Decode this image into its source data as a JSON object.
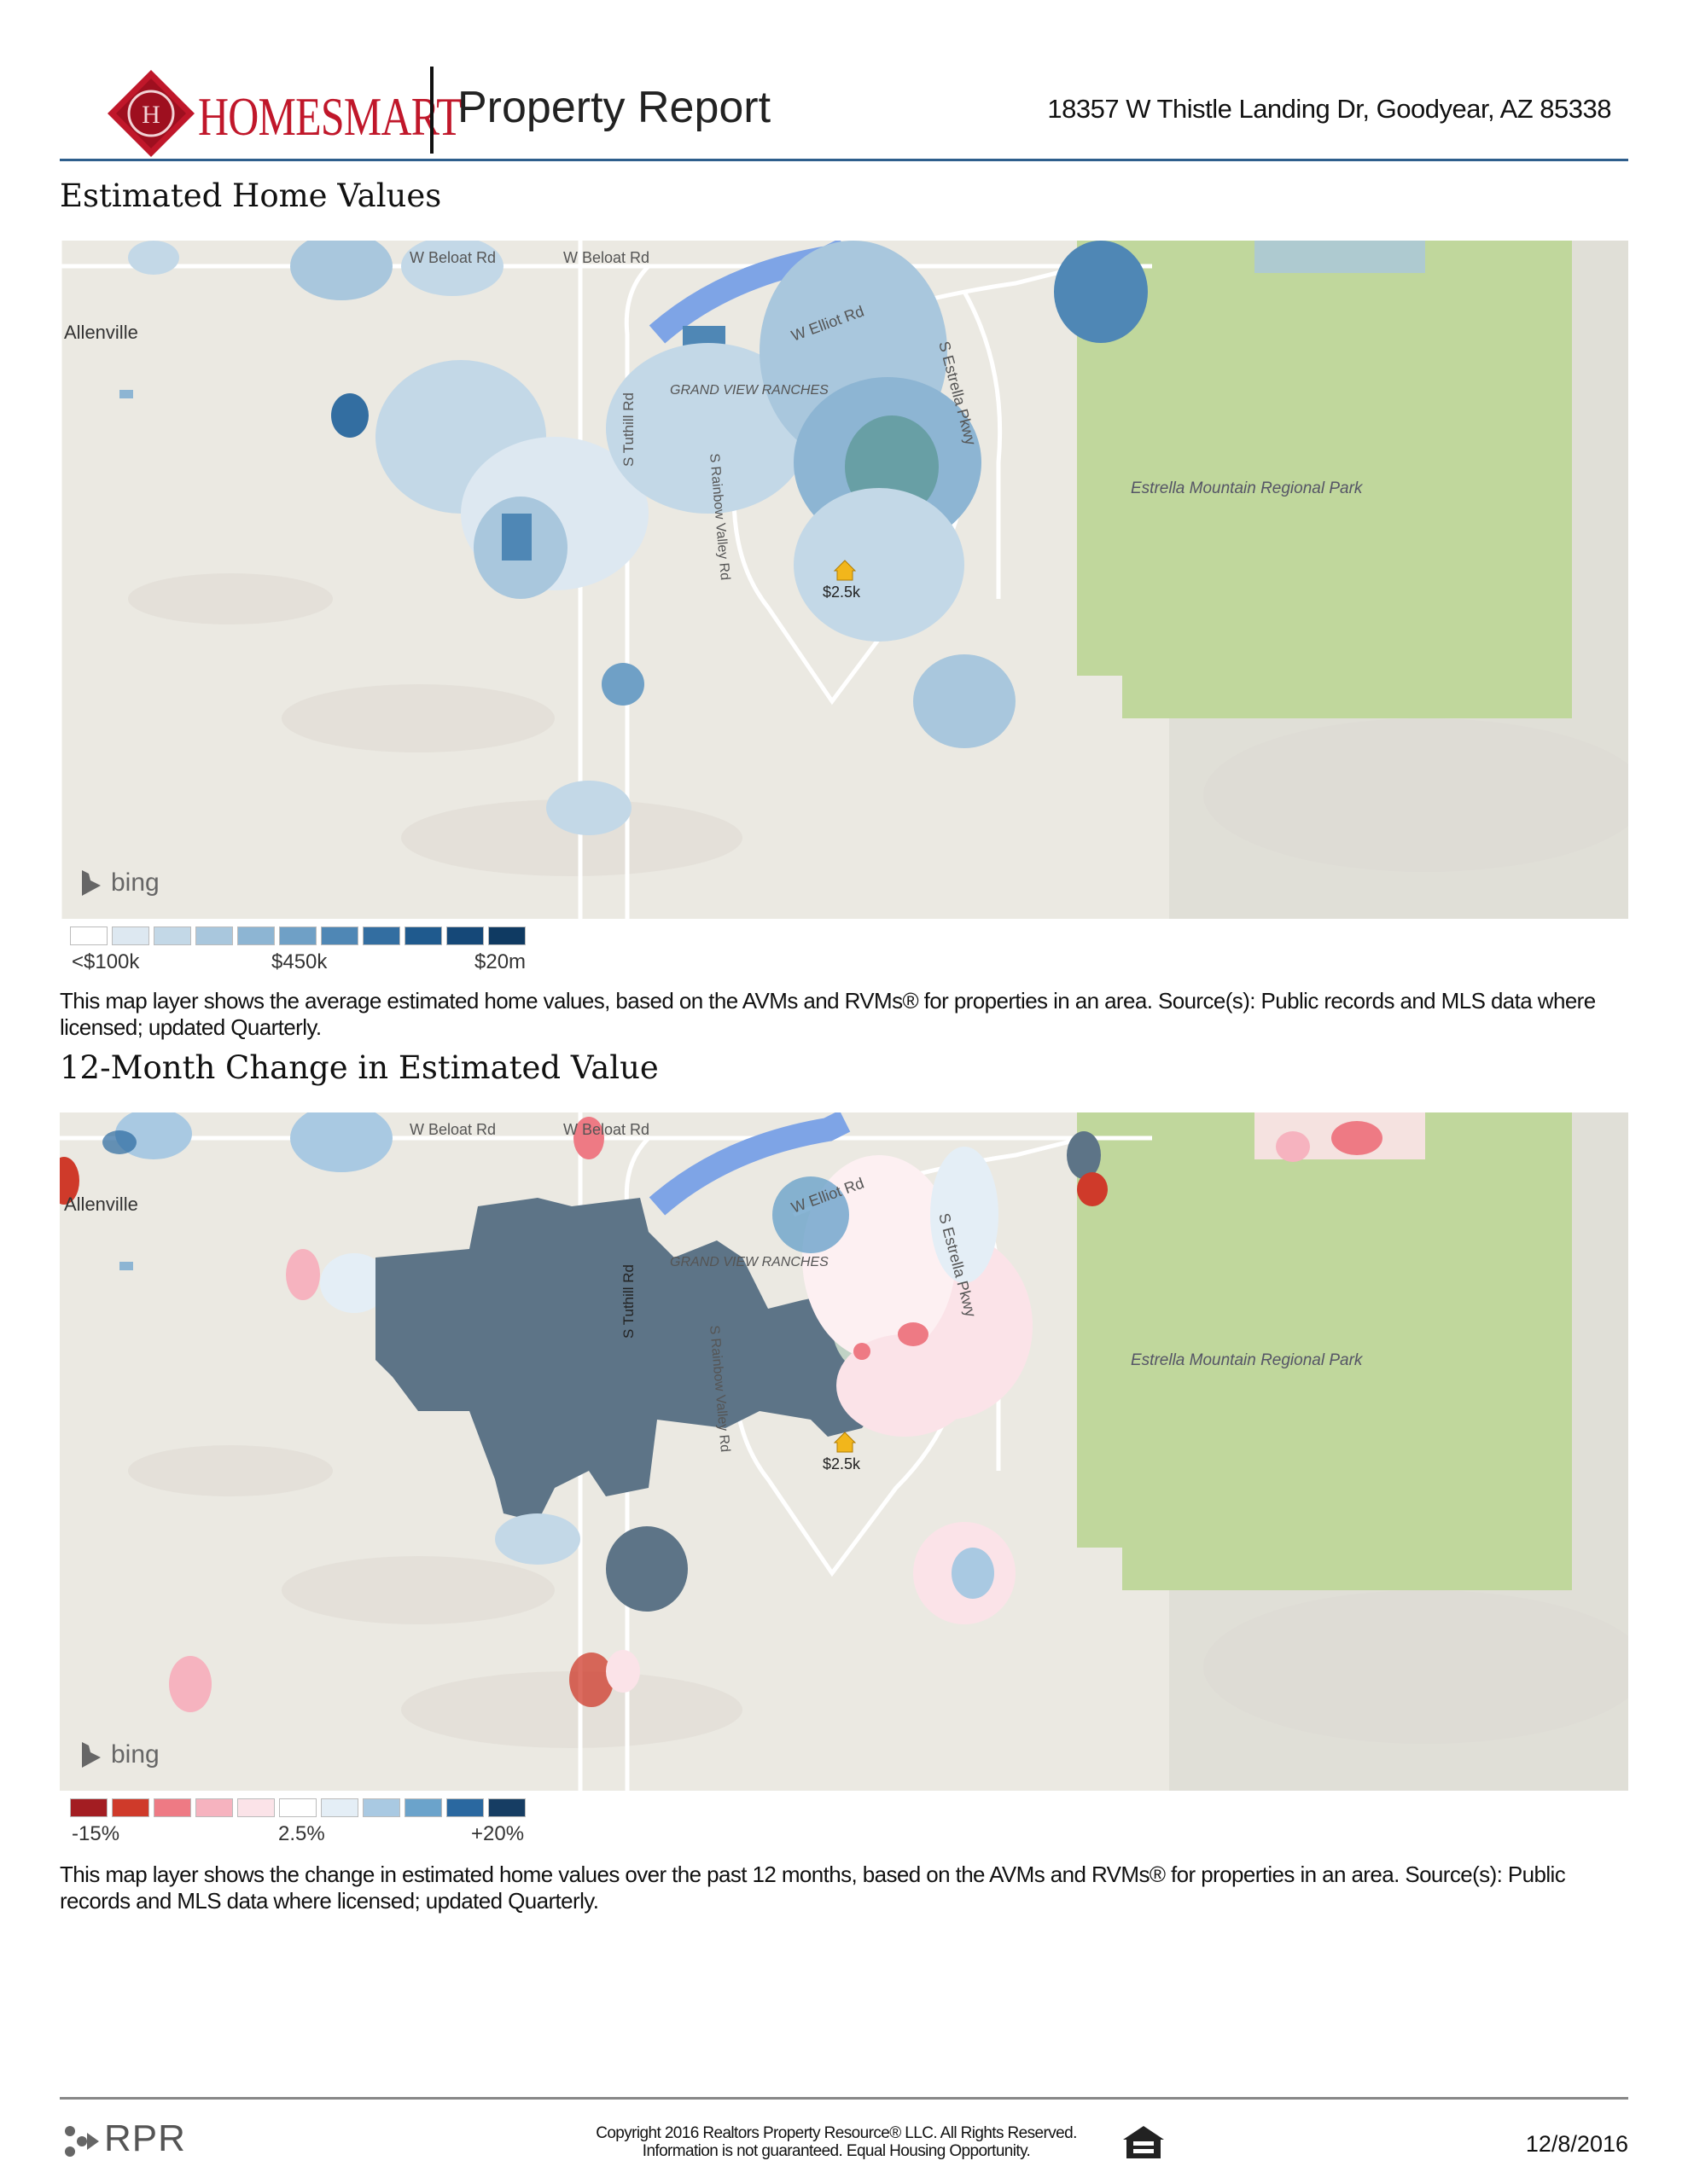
{
  "header": {
    "brand": "HOMESMART",
    "title": "Property Report",
    "address": "18357 W Thistle Landing Dr, Goodyear, AZ 85338"
  },
  "sections": [
    {
      "title": "Estimated Home Values",
      "map": {
        "labels": {
          "road1": "W Beloat Rd",
          "road2": "W Beloat Rd",
          "town": "Allenville",
          "road3": "W Elliot Rd",
          "road4": "S Estrella Pkwy",
          "road5": "S Tuthill Rd",
          "area": "GRAND VIEW RANCHES",
          "road6": "S Rainbow Valley Rd",
          "park": "Estrella Mountain Regional Park",
          "pin_value": "$2.5k",
          "provider": "bing"
        }
      },
      "legend": {
        "colors": [
          "#ffffff",
          "#dde8f1",
          "#c3d8e7",
          "#a9c7dd",
          "#8db5d3",
          "#6fa0c6",
          "#4f87b5",
          "#336ea1",
          "#1f5a8e",
          "#154878",
          "#0f3a62"
        ],
        "labels": [
          "<$100k",
          "$450k",
          "$20m"
        ]
      },
      "description": "This map layer shows the average estimated home values, based on the AVMs and RVMs® for properties in an area. Source(s): Public records and MLS data where licensed; updated Quarterly."
    },
    {
      "title": "12-Month Change in Estimated Value",
      "map": {
        "labels": {
          "road1": "W Beloat Rd",
          "road2": "W Beloat Rd",
          "town": "Allenville",
          "road3": "W Elliot Rd",
          "road4": "S Estrella Pkwy",
          "road5": "S Tuthill Rd",
          "area": "GRAND VIEW RANCHES",
          "road6": "S Rainbow Valley Rd",
          "park": "Estrella Mountain Regional Park",
          "pin_value": "$2.5k",
          "provider": "bing"
        }
      },
      "legend": {
        "colors": [
          "#a31d22",
          "#cf3a2a",
          "#ee7a84",
          "#f6b3bf",
          "#fbe3e8",
          "#ffffff",
          "#e4eef6",
          "#a9c9e2",
          "#6ba3cb",
          "#2a68a0",
          "#163d63"
        ],
        "labels": [
          "-15%",
          "2.5%",
          "+20%"
        ]
      },
      "description": "This map layer shows the change in estimated home values over the past 12 months, based on the AVMs and RVMs® for properties in an area. Source(s): Public records and MLS data where licensed; updated Quarterly."
    }
  ],
  "footer": {
    "logo": "RPR",
    "copyright_line1": "Copyright 2016 Realtors Property Resource® LLC. All Rights Reserved.",
    "copyright_line2": "Information is not guaranteed. Equal Housing Opportunity.",
    "date": "12/8/2016"
  }
}
